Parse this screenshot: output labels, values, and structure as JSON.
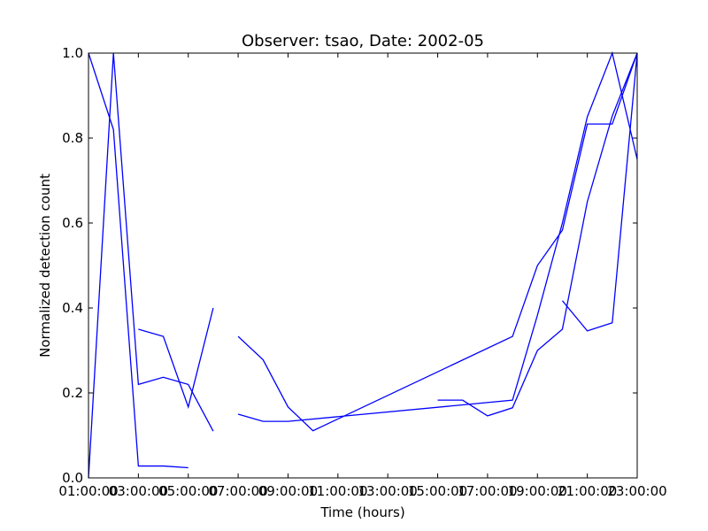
{
  "chart_data": {
    "type": "line",
    "title": "Observer: tsao, Date: 2002-05",
    "xlabel": "Time (hours)",
    "ylabel": "Normalized detection count",
    "xlim": [
      1,
      23
    ],
    "ylim": [
      0,
      1.0
    ],
    "x_ticks": [
      1,
      3,
      5,
      7,
      9,
      11,
      13,
      15,
      17,
      19,
      21,
      23
    ],
    "x_tick_labels": [
      "01:00:00",
      "03:00:00",
      "05:00:00",
      "07:00:00",
      "09:00:00",
      "11:00:00",
      "13:00:00",
      "15:00:00",
      "17:00:00",
      "19:00:00",
      "21:00:00",
      "23:00:00"
    ],
    "y_ticks": [
      0.0,
      0.2,
      0.4,
      0.6,
      0.8,
      1.0
    ],
    "y_tick_labels": [
      "0.0",
      "0.2",
      "0.4",
      "0.6",
      "0.8",
      "1.0"
    ],
    "grid": false,
    "line_color": "#0000ff",
    "series": [
      {
        "x": [
          1,
          2,
          3,
          4,
          5
        ],
        "y": [
          1.0,
          0.82,
          0.028,
          0.028,
          0.024
        ]
      },
      {
        "x": [
          1,
          2,
          3,
          4,
          5,
          6
        ],
        "y": [
          0.0,
          1.0,
          0.22,
          0.237,
          0.22,
          0.11
        ]
      },
      {
        "x": [
          3,
          4,
          5,
          6
        ],
        "y": [
          0.35,
          0.333,
          0.167,
          0.4
        ]
      },
      {
        "x": [
          7,
          8,
          9,
          10,
          18,
          19,
          20,
          21,
          22,
          23
        ],
        "y": [
          0.333,
          0.278,
          0.167,
          0.111,
          0.333,
          0.5,
          0.583,
          0.833,
          0.833,
          1.0
        ]
      },
      {
        "x": [
          7,
          8,
          9,
          18,
          19,
          20,
          21,
          22,
          23
        ],
        "y": [
          0.15,
          0.133,
          0.133,
          0.183,
          0.383,
          0.6,
          0.85,
          1.0,
          0.75
        ]
      },
      {
        "x": [
          15,
          16,
          17,
          18,
          19,
          20,
          21,
          22,
          23
        ],
        "y": [
          0.183,
          0.183,
          0.146,
          0.165,
          0.3,
          0.35,
          0.65,
          0.852,
          1.0
        ]
      },
      {
        "x": [
          20,
          21,
          22,
          23
        ],
        "y": [
          0.417,
          0.346,
          0.365,
          1.0
        ]
      }
    ]
  }
}
